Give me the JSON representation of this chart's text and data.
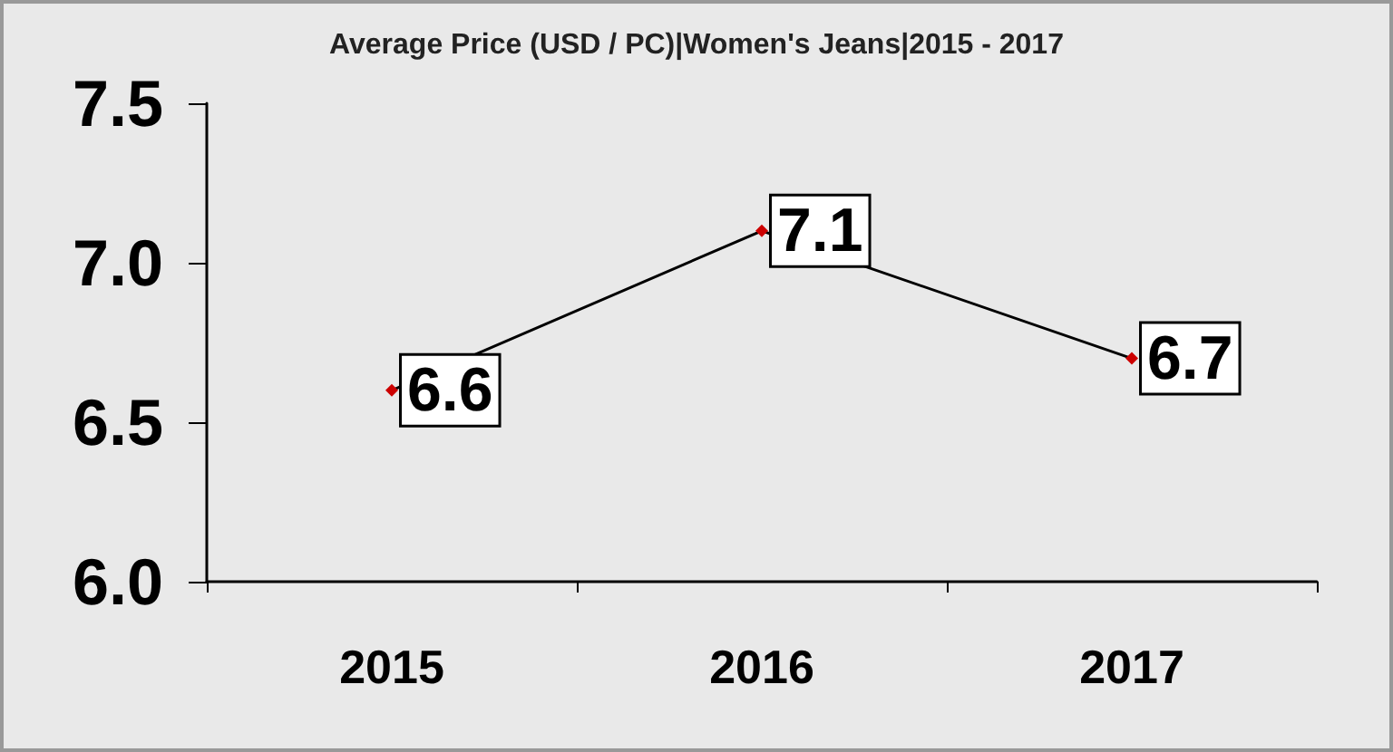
{
  "chart_data": {
    "type": "line",
    "title": "Average Price (USD / PC)|Women's Jeans|2015 - 2017",
    "categories": [
      "2015",
      "2016",
      "2017"
    ],
    "series": [
      {
        "color": "#000000",
        "values": [
          6.6,
          7.1,
          6.7
        ]
      }
    ],
    "ylim": [
      6.0,
      7.5
    ],
    "yticks": [
      {
        "value": 6.0,
        "label": "6.0"
      },
      {
        "value": 6.5,
        "label": "6.5"
      },
      {
        "value": 7.0,
        "label": "7.0"
      },
      {
        "value": 7.5,
        "label": "7.5"
      }
    ],
    "grid": false,
    "marker": "diamond",
    "line_style": "solid",
    "data_labels": true
  }
}
